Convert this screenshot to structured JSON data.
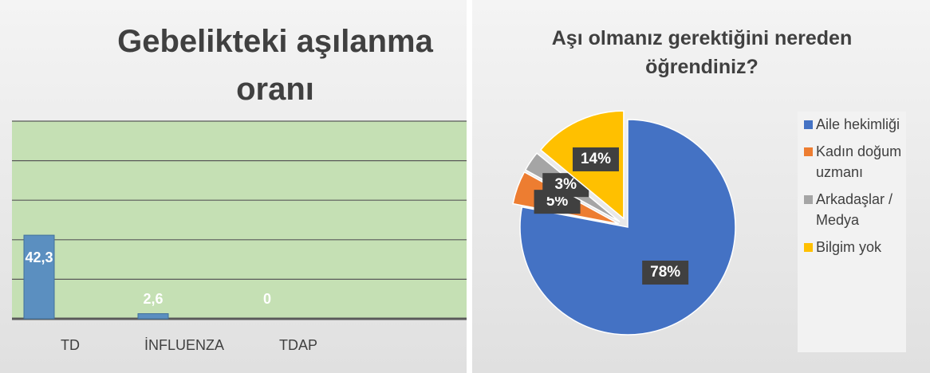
{
  "chart_data": [
    {
      "type": "bar",
      "title": "Gebelikteki aşılanma oranı",
      "categories": [
        "TD",
        "İNFLUENZA",
        "TDAP"
      ],
      "values": [
        42.3,
        2.6,
        0
      ],
      "value_labels": [
        "42,3",
        "2,6",
        "0"
      ],
      "color": "#5b8fc0",
      "ylim": [
        0,
        100
      ],
      "yticks": [
        0,
        20,
        40,
        60,
        80,
        100
      ],
      "grid": true
    },
    {
      "type": "pie",
      "title": "Aşı olmanız gerektiğini nereden öğrendiniz?",
      "categories": [
        "Aile hekimliği",
        "Kadın doğum uzmanı",
        "Arkadaşlar / Medya",
        "Bilgim yok"
      ],
      "values": [
        78,
        5,
        3,
        14
      ],
      "value_labels": [
        "78%",
        "5%",
        "3%",
        "14%"
      ],
      "colors": [
        "#4472c4",
        "#ed7d31",
        "#a5a5a5",
        "#ffc000"
      ],
      "legend": "right"
    }
  ]
}
